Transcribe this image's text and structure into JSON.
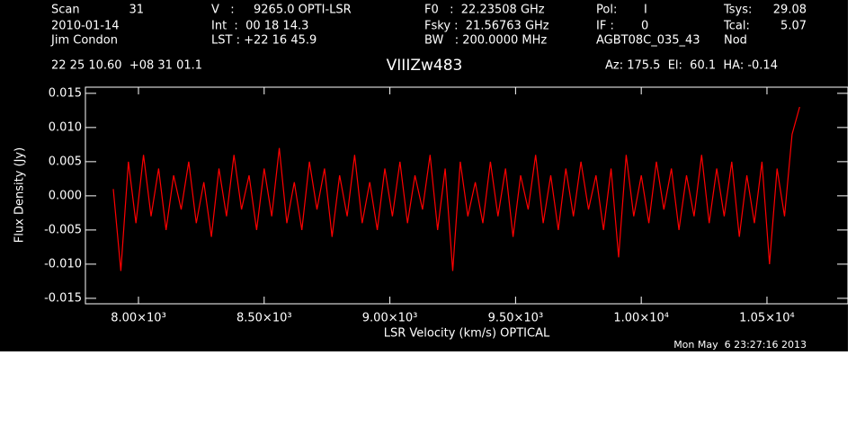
{
  "header": [
    "Scan",
    "31",
    "V   :",
    "9265.0 OPTI-LSR",
    "F0   :  22.23508 GHz",
    "Pol:",
    "I",
    "Tsys:",
    "29.08",
    "2010-01-14",
    "Int  :  00 18 14.3",
    "Fsky :  21.56763 GHz",
    "IF :",
    "0",
    "Tcal:",
    "5.07",
    "Jim Condon",
    "LST : +22 16 45.9",
    "BW   : 200.0000 MHz",
    "AGBT08C_035_43",
    "Nod",
    "22 25 10.60  +08 31 01.1",
    "Az: 175.5  El:  60.1  HA: -0.14"
  ],
  "footer": "Mon May  6 23:27:16 2013",
  "chart_data": {
    "type": "line",
    "title": "VIIIZw483",
    "x_label": "LSR Velocity (km/s) OPTICAL",
    "y_label": "Flux Density (Jy)",
    "xlim": [
      7789,
      10822
    ],
    "ylim": [
      -0.0158,
      0.0159
    ],
    "xticks": [
      {
        "value": 8000,
        "label": "8.00×10³"
      },
      {
        "value": 8500,
        "label": "8.50×10³"
      },
      {
        "value": 9000,
        "label": "9.00×10³"
      },
      {
        "value": 9500,
        "label": "9.50×10³"
      },
      {
        "value": 10000,
        "label": "1.00×10⁴"
      },
      {
        "value": 10500,
        "label": "1.05×10⁴"
      }
    ],
    "yticks": [
      {
        "value": -0.015,
        "label": "-0.015"
      },
      {
        "value": -0.01,
        "label": "-0.010"
      },
      {
        "value": -0.005,
        "label": "-0.005"
      },
      {
        "value": 0,
        "label": "0.000"
      },
      0.005,
      {
        "value": 0.01,
        "label": "0.010"
      },
      0.015
    ],
    "series": [
      {
        "color": "#ff0000",
        "x": [
          7900,
          7930,
          7960,
          7990,
          8020,
          8050,
          8080,
          8110,
          8140,
          8170,
          8200,
          8230,
          8260,
          8290,
          8320,
          8350,
          8380,
          8410,
          8440,
          8470,
          8500,
          8530,
          8560,
          8590,
          8620,
          8650,
          8680,
          8710,
          8740,
          8770,
          8800,
          8830,
          8860,
          8890,
          8920,
          8950,
          8980,
          9010,
          9040,
          9070,
          9100,
          9130,
          9160,
          9190,
          9220,
          9250,
          9280,
          9310,
          9340,
          9370,
          9400,
          9430,
          9460,
          9490,
          9520,
          9550,
          9580,
          9610,
          9640,
          9670,
          9700,
          9730,
          9760,
          9790,
          9820,
          9850,
          9880,
          9910,
          9940,
          9970,
          10000,
          10030,
          10060,
          10090,
          10120,
          10150,
          10180,
          10210,
          10240,
          10270,
          10300,
          10330,
          10360,
          10390,
          10420,
          10450,
          10480,
          10510,
          10540,
          10570,
          10600,
          10630
        ],
        "values": [
          0.001,
          -0.011,
          0.005,
          -0.004,
          0.006,
          -0.003,
          0.004,
          -0.005,
          0.003,
          -0.002,
          0.005,
          -0.004,
          0.002,
          -0.006,
          0.004,
          -0.003,
          0.006,
          -0.002,
          0.003,
          -0.005,
          0.004,
          -0.003,
          0.007,
          -0.004,
          0.002,
          -0.005,
          0.005,
          -0.002,
          0.004,
          -0.006,
          0.003,
          -0.003,
          0.006,
          -0.004,
          0.002,
          -0.005,
          0.004,
          -0.003,
          0.005,
          -0.004,
          0.003,
          -0.002,
          0.006,
          -0.005,
          0.004,
          -0.011,
          0.005,
          -0.003,
          0.002,
          -0.004,
          0.005,
          -0.003,
          0.004,
          -0.006,
          0.003,
          -0.002,
          0.006,
          -0.004,
          0.003,
          -0.005,
          0.004,
          -0.003,
          0.005,
          -0.002,
          0.003,
          -0.005,
          0.004,
          -0.009,
          0.006,
          -0.003,
          0.003,
          -0.004,
          0.005,
          -0.002,
          0.004,
          -0.005,
          0.003,
          -0.003,
          0.006,
          -0.004,
          0.004,
          -0.003,
          0.005,
          -0.006,
          0.003,
          -0.004,
          0.005,
          -0.01,
          0.004,
          -0.003,
          0.009,
          0.013
        ]
      }
    ]
  }
}
